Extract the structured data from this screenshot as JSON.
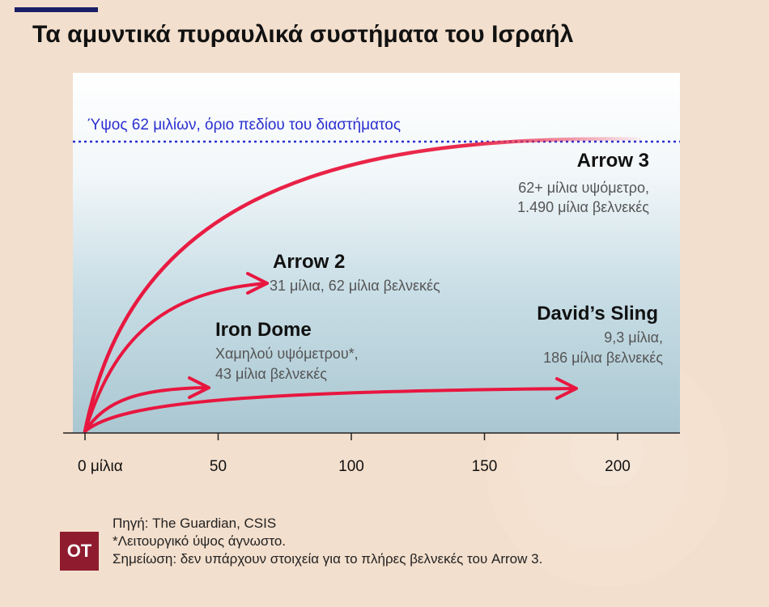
{
  "title": "Τα αμυντικά πυραυλικά συστήματα του Ισραήλ",
  "colors": {
    "background": "#f3dfcd",
    "accent_rule": "#1a1f66",
    "arc": "#e8163f",
    "space_line": "#2a2fd0",
    "logo": "#8e1b2e",
    "axis": "#222222",
    "label_muted": "#555555"
  },
  "chart_data": {
    "type": "line",
    "title": "Τα αμυντικά πυραυλικά συστήματα του Ισραήλ",
    "x_unit": "μίλια",
    "xlim": [
      0,
      222
    ],
    "x_ticks": [
      0,
      50,
      100,
      150,
      200
    ],
    "x_tick_labels": [
      "0 μίλια",
      "50",
      "100",
      "150",
      "200"
    ],
    "reference_line": {
      "value": 62,
      "label": "Ύψος 62 μιλίων, όριο πεδίου του διαστήματος"
    },
    "series": [
      {
        "name": "Arrow 3",
        "altitude_miles": 62,
        "range_miles": 1490,
        "details": [
          "62+ μίλια υψόμετρο,",
          "1.490 μίλια βελνεκές"
        ]
      },
      {
        "name": "Arrow 2",
        "altitude_miles": 31,
        "range_miles": 62,
        "details": [
          "31 μίλια, 62 μίλια βελνεκές"
        ]
      },
      {
        "name": "Iron Dome",
        "altitude_miles": null,
        "range_miles": 43,
        "details": [
          "Χαμηλού υψόμετρου*,",
          "43 μίλια βελνεκές"
        ]
      },
      {
        "name": "David’s Sling",
        "altitude_miles": 9.3,
        "range_miles": 186,
        "details": [
          "9,3 μίλια,",
          "186 μίλια βελνεκές"
        ]
      }
    ]
  },
  "footer": {
    "logo": "ΟΤ",
    "source": "Πηγή: The Guardian, CSIS",
    "footnote": "*Λειτουργικό ύψος άγνωστο.",
    "note": "Σημείωση: δεν υπάρχουν στοιχεία για το πλήρες βελνεκές του Arrow 3."
  }
}
